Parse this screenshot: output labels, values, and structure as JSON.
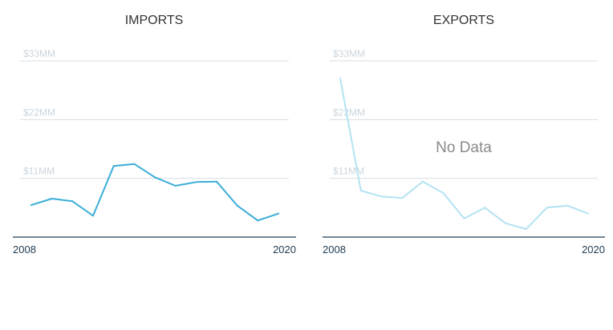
{
  "colors": {
    "line": "#3aaed8",
    "line_faded": "#b3e3f2",
    "grid": "#d7dde2",
    "tick_y": "#cad6df",
    "axis": "#1f3b52",
    "tick_x": "#1f3b52",
    "overlay": "#8a8a8a"
  },
  "chart_data": [
    {
      "type": "line",
      "title": "IMPORTS",
      "xlabel": "",
      "ylabel": "",
      "x_ticks": [
        "2008",
        "2020"
      ],
      "y_ticks": [
        {
          "value": 11,
          "label": "$11MM"
        },
        {
          "value": 22,
          "label": "$22MM"
        },
        {
          "value": 33,
          "label": "$33MM"
        }
      ],
      "ylim": [
        0,
        33
      ],
      "grid": true,
      "faded": false,
      "overlay_text": "",
      "series": [
        {
          "x": [
            2008,
            2009,
            2010,
            2011,
            2012,
            2013,
            2014,
            2015,
            2016,
            2017,
            2018,
            2019,
            2020
          ],
          "values": [
            6.0,
            7.2,
            6.7,
            4.0,
            13.3,
            13.7,
            11.2,
            9.6,
            10.3,
            10.4,
            5.9,
            3.1,
            4.4
          ]
        }
      ]
    },
    {
      "type": "line",
      "title": "EXPORTS",
      "xlabel": "",
      "ylabel": "",
      "x_ticks": [
        "2008",
        "2020"
      ],
      "y_ticks": [
        {
          "value": 11,
          "label": "$11MM"
        },
        {
          "value": 22,
          "label": "$22MM"
        },
        {
          "value": 33,
          "label": "$33MM"
        }
      ],
      "ylim": [
        0,
        33
      ],
      "grid": true,
      "faded": true,
      "overlay_text": "No Data",
      "series": [
        {
          "x": [
            2008,
            2009,
            2010,
            2011,
            2012,
            2013,
            2014,
            2015,
            2016,
            2017,
            2018,
            2019,
            2020
          ],
          "values": [
            29.7,
            8.7,
            7.6,
            7.3,
            10.4,
            8.2,
            3.5,
            5.5,
            2.6,
            1.5,
            5.5,
            5.9,
            4.4
          ]
        }
      ]
    }
  ]
}
